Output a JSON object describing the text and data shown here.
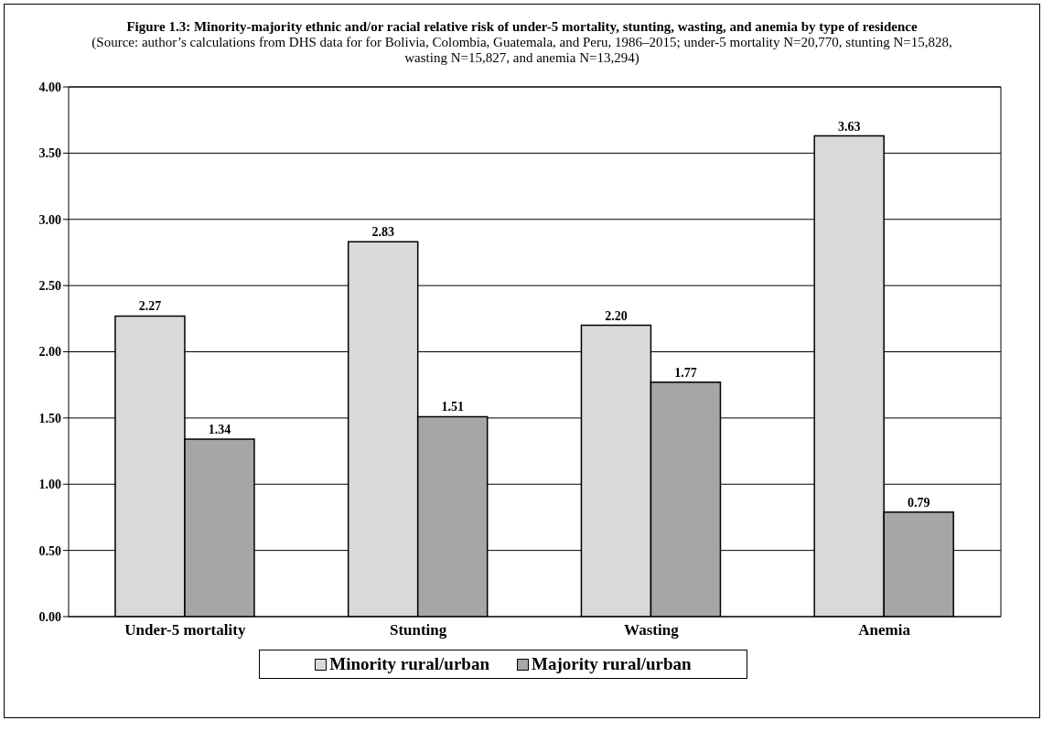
{
  "chart_data": {
    "type": "bar",
    "title": "Figure 1.3: Minority-majority ethnic and/or racial relative risk of under-5 mortality, stunting, wasting, and anemia by type of residence",
    "subtitle": "(Source: author’s calculations from DHS data for for Bolivia, Colombia, Guatemala, and Peru, 1986–2015; under-5 mortality N=20,770, stunting N=15,828, wasting N=15,827, and anemia N=13,294)",
    "categories": [
      "Under-5 mortality",
      "Stunting",
      "Wasting",
      "Anemia"
    ],
    "series": [
      {
        "name": "Minority rural/urban",
        "color": "#d9d9d9",
        "values": [
          2.27,
          2.83,
          2.2,
          3.63
        ],
        "value_labels": [
          "2.27",
          "2.83",
          "2.20",
          "3.63"
        ]
      },
      {
        "name": "Majority rural/urban",
        "color": "#a6a6a6",
        "values": [
          1.34,
          1.51,
          1.77,
          0.79
        ],
        "value_labels": [
          "1.34",
          "1.51",
          "1.77",
          "0.79"
        ]
      }
    ],
    "ylim": [
      0,
      4
    ],
    "yticks": [
      {
        "value": 0,
        "label": "0.00"
      },
      {
        "value": 0.5,
        "label": "0.50"
      },
      {
        "value": 1,
        "label": "1.00"
      },
      {
        "value": 1.5,
        "label": "1.50"
      },
      {
        "value": 2,
        "label": "2.00"
      },
      {
        "value": 2.5,
        "label": "2.50"
      },
      {
        "value": 3,
        "label": "3.00"
      },
      {
        "value": 3.5,
        "label": "3.50"
      },
      {
        "value": 4,
        "label": "4.00"
      }
    ],
    "grid": "y",
    "legend": "bottom"
  }
}
